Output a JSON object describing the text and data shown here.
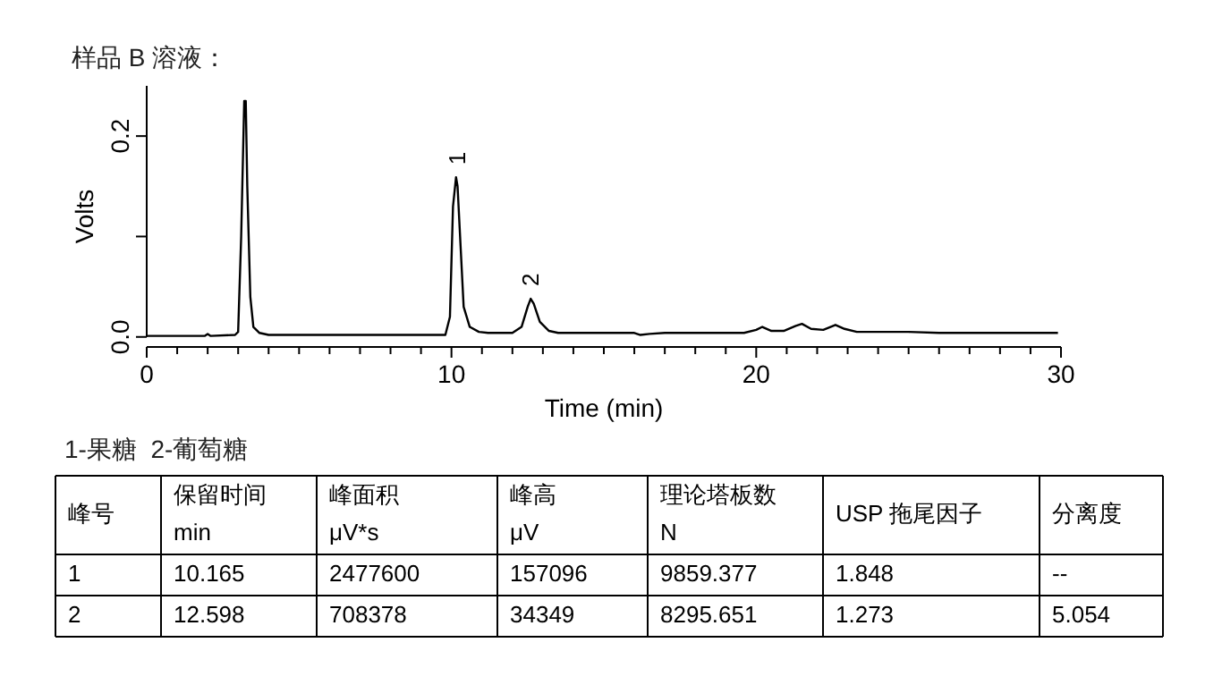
{
  "chart_data": {
    "type": "line",
    "title": "样品 B 溶液：",
    "xlabel": "Time (min)",
    "ylabel": "Volts",
    "series": [
      {
        "color": "#000000",
        "x": [
          0,
          1.9,
          2.0,
          2.1,
          2.9,
          3.0,
          3.1,
          3.2,
          3.25,
          3.3,
          3.4,
          3.5,
          3.7,
          4.0,
          9.8,
          9.95,
          10.05,
          10.15,
          10.2,
          10.3,
          10.4,
          10.6,
          10.9,
          11.2,
          12.0,
          12.3,
          12.5,
          12.6,
          12.7,
          12.9,
          13.2,
          13.5,
          16.0,
          16.2,
          16.5,
          17.0,
          19.6,
          20.0,
          20.2,
          20.5,
          20.9,
          21.3,
          21.5,
          21.8,
          22.2,
          22.6,
          22.9,
          23.3,
          25.0,
          26.0,
          27.0,
          28.0,
          29.9
        ],
        "values": [
          0.001,
          0.001,
          0.003,
          0.001,
          0.002,
          0.005,
          0.1,
          0.235,
          0.235,
          0.15,
          0.04,
          0.01,
          0.004,
          0.002,
          0.002,
          0.02,
          0.13,
          0.159,
          0.15,
          0.09,
          0.03,
          0.01,
          0.005,
          0.004,
          0.004,
          0.01,
          0.03,
          0.038,
          0.033,
          0.015,
          0.006,
          0.004,
          0.004,
          0.002,
          0.003,
          0.004,
          0.004,
          0.007,
          0.01,
          0.006,
          0.006,
          0.011,
          0.013,
          0.008,
          0.007,
          0.012,
          0.008,
          0.005,
          0.005,
          0.004,
          0.004,
          0.004,
          0.004
        ]
      }
    ],
    "xlim": [
      0,
      30
    ],
    "ylim": [
      -0.01,
      0.25
    ],
    "xticks": [
      0,
      {
        "value": 1,
        "label": null
      },
      {
        "value": 2,
        "label": null
      },
      {
        "value": 3,
        "label": null
      },
      {
        "value": 4,
        "label": null
      },
      {
        "value": 5,
        "label": null
      },
      {
        "value": 6,
        "label": null
      },
      {
        "value": 7,
        "label": null
      },
      {
        "value": 8,
        "label": null
      },
      {
        "value": 9,
        "label": null
      },
      10,
      {
        "value": 11,
        "label": null
      },
      {
        "value": 12,
        "label": null
      },
      {
        "value": 13,
        "label": null
      },
      {
        "value": 14,
        "label": null
      },
      {
        "value": 15,
        "label": null
      },
      {
        "value": 16,
        "label": null
      },
      {
        "value": 17,
        "label": null
      },
      {
        "value": 18,
        "label": null
      },
      {
        "value": 19,
        "label": null
      },
      20,
      {
        "value": 21,
        "label": null
      },
      {
        "value": 22,
        "label": null
      },
      {
        "value": 23,
        "label": null
      },
      {
        "value": 24,
        "label": null
      },
      {
        "value": 25,
        "label": null
      },
      {
        "value": 26,
        "label": null
      },
      {
        "value": 27,
        "label": null
      },
      {
        "value": 28,
        "label": null
      },
      {
        "value": 29,
        "label": null
      },
      30
    ],
    "yticks": [
      {
        "value": 0,
        "label": "0.0"
      },
      {
        "value": 0.1,
        "label": null
      },
      {
        "value": 0.2,
        "label": "0.2"
      }
    ],
    "grid": false,
    "annotations": [
      {
        "text": "1",
        "x": 10.2,
        "y": 0.159
      },
      {
        "text": "2",
        "x": 12.6,
        "y": 0.038
      },
      "1-果糖  2-葡萄糖",
      "峰号",
      "保留时间\nmin",
      "峰面积\nμV*s",
      "峰高\nμV",
      "理论塔板数\nN",
      "USP 拖尾因子",
      "分离度",
      "1",
      "10.165",
      "2477600",
      "157096",
      "9859.377",
      "1.848",
      "--",
      "2",
      "12.598",
      "708378",
      "34349",
      "8295.651",
      "1.273",
      "5.054"
    ]
  }
}
